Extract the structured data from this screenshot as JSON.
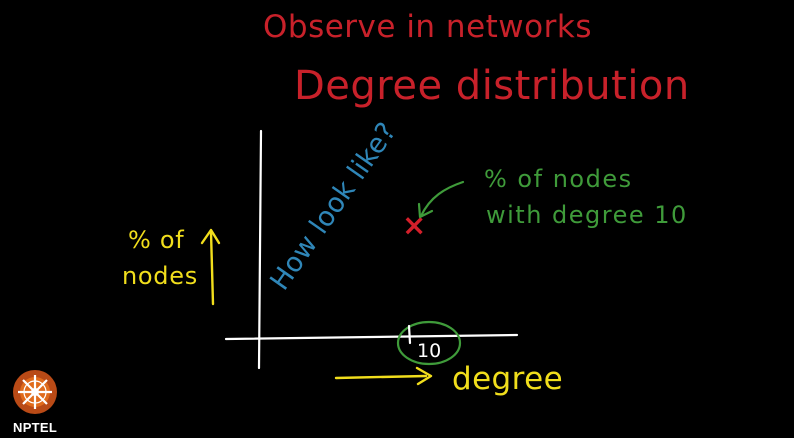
{
  "slide": {
    "title_line_1": "Observe in networks",
    "title_line_2": "Degree distribution",
    "blue_question": "How look like?",
    "green_note_line_1": "% of nodes",
    "green_note_line_2": "with degree 10",
    "y_axis_label_line_1": "% of",
    "y_axis_label_line_2": "nodes",
    "x_axis_label": "degree",
    "x_axis_value": "10",
    "point_marker": "×",
    "colors": {
      "background": "#000000",
      "red": "#c8212a",
      "blue": "#2f86b8",
      "green": "#3f9b3a",
      "yellow": "#f1de1c",
      "white": "#ffffff"
    }
  },
  "logo": {
    "label": "NPTEL",
    "icon": "nptel-logo-icon",
    "colors": {
      "outer": "#b94a16",
      "inner": "#e06b1c",
      "text": "#ffffff"
    }
  }
}
